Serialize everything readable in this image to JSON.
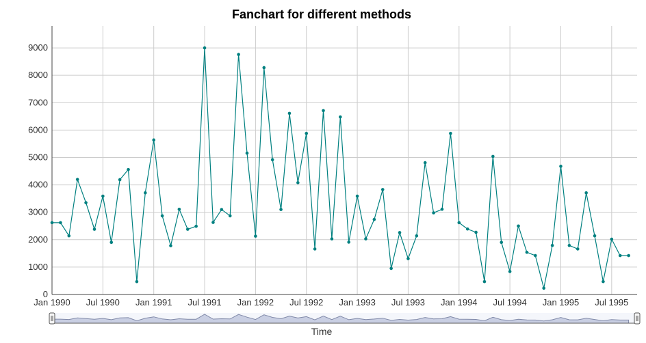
{
  "chart_data": {
    "type": "line",
    "title": "Fanchart for different methods",
    "xlabel": "Time",
    "ylabel": "",
    "ylim": [
      0,
      9800
    ],
    "y_ticks": [
      "0",
      "1000",
      "2000",
      "3000",
      "4000",
      "5000",
      "6000",
      "7000",
      "8000",
      "9000"
    ],
    "x_ticks": [
      "Jan 1990",
      "Jul 1990",
      "Jan 1991",
      "Jul 1991",
      "Jan 1992",
      "Jul 1992",
      "Jan 1993",
      "Jul 1993",
      "Jan 1994",
      "Jul 1994",
      "Jan 1995",
      "Jul 1995"
    ],
    "x_range": [
      "1990-01",
      "1995-10"
    ],
    "grid": true,
    "line_color": "#008080",
    "series": [
      {
        "x": [
          "1990-01",
          "1990-02",
          "1990-03",
          "1990-04",
          "1990-05",
          "1990-06",
          "1990-07",
          "1990-08",
          "1990-09",
          "1990-10",
          "1990-11",
          "1990-12",
          "1991-01",
          "1991-02",
          "1991-03",
          "1991-04",
          "1991-05",
          "1991-06",
          "1991-07",
          "1991-08",
          "1991-09",
          "1991-10",
          "1991-11",
          "1991-12",
          "1992-01",
          "1992-02",
          "1992-03",
          "1992-04",
          "1992-05",
          "1992-06",
          "1992-07",
          "1992-08",
          "1992-09",
          "1992-10",
          "1992-11",
          "1992-12",
          "1993-01",
          "1993-02",
          "1993-03",
          "1993-04",
          "1993-05",
          "1993-06",
          "1993-07",
          "1993-08",
          "1993-09",
          "1993-10",
          "1993-11",
          "1993-12",
          "1994-01",
          "1994-02",
          "1994-03",
          "1994-04",
          "1994-05",
          "1994-06",
          "1994-07",
          "1994-08",
          "1994-09",
          "1994-10",
          "1994-11",
          "1994-12",
          "1995-01",
          "1995-02",
          "1995-03",
          "1995-04",
          "1995-05",
          "1995-06",
          "1995-07",
          "1995-08",
          "1995-09"
        ],
        "values": [
          2620,
          2620,
          2140,
          4200,
          3350,
          2380,
          3590,
          1900,
          4190,
          4560,
          470,
          3710,
          5640,
          2870,
          1780,
          3110,
          2380,
          2490,
          9000,
          2630,
          3100,
          2870,
          8760,
          5160,
          2130,
          8280,
          4920,
          3100,
          6610,
          4080,
          5880,
          1660,
          6710,
          2030,
          6480,
          1910,
          3590,
          2030,
          2740,
          3830,
          950,
          2260,
          1310,
          2140,
          4810,
          2980,
          3110,
          5880,
          2620,
          2390,
          2270,
          470,
          5040,
          1900,
          840,
          2500,
          1540,
          1420,
          230,
          1790,
          4680,
          1790,
          1660,
          3710,
          2140,
          470,
          2020,
          1420,
          1420
        ]
      }
    ]
  }
}
